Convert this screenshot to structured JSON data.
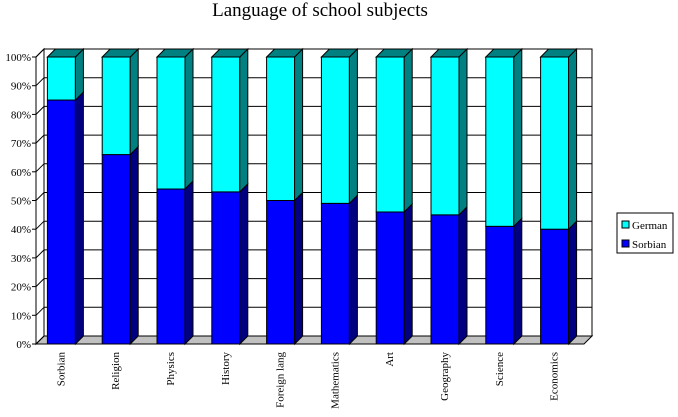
{
  "chart_data": {
    "type": "bar",
    "stacked": true,
    "percent": true,
    "title": "Language of school subjects",
    "categories": [
      "Sorbian",
      "Religion",
      "Physics",
      "History",
      "Foreign lang",
      "Mathematics",
      "Art",
      "Geography",
      "Science",
      "Economics"
    ],
    "series": [
      {
        "name": "Sorbian",
        "color": "#0000ff",
        "values": [
          85,
          66,
          54,
          53,
          50,
          49,
          46,
          45,
          41,
          40
        ]
      },
      {
        "name": "German",
        "color": "#00ffff",
        "values": [
          15,
          34,
          46,
          47,
          50,
          51,
          54,
          55,
          59,
          60
        ]
      }
    ],
    "y_ticks": [
      "0%",
      "10%",
      "20%",
      "30%",
      "40%",
      "50%",
      "60%",
      "70%",
      "80%",
      "90%",
      "100%"
    ],
    "ylim": [
      0,
      100
    ],
    "grid": true,
    "legend_position": "right",
    "legend_entries": [
      "German",
      "Sorbian"
    ]
  }
}
